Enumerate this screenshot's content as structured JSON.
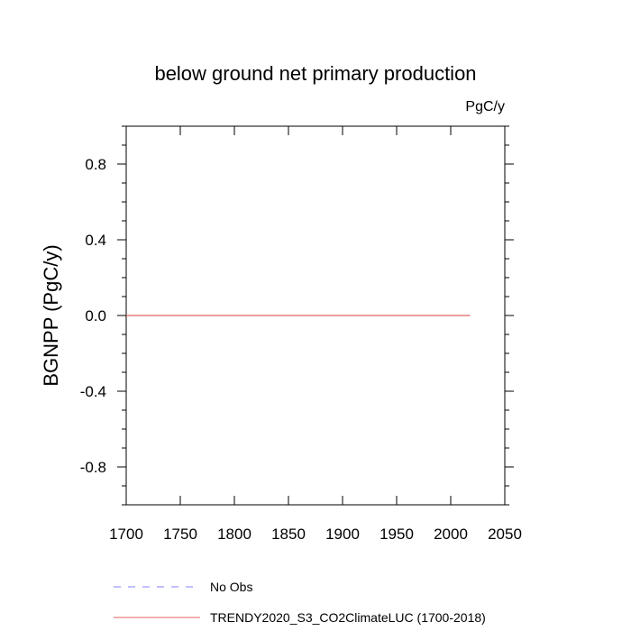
{
  "chart_data": {
    "type": "line",
    "title": "below ground net primary production",
    "units_label": "PgC/y",
    "xlabel": "",
    "ylabel": "BGNPP  (PgC/y)",
    "xlim": [
      1700,
      2050
    ],
    "ylim": [
      -1.0,
      1.0
    ],
    "x_ticks": [
      1700,
      1750,
      1800,
      1850,
      1900,
      1950,
      2000,
      2050
    ],
    "x_tick_labels": [
      "1700",
      "1750",
      "1800",
      "1850",
      "1900",
      "1950",
      "2000",
      "2050"
    ],
    "y_ticks": [
      0.8,
      0.4,
      0.0,
      -0.4,
      -0.8
    ],
    "y_tick_labels": [
      "0.8",
      "0.4",
      "0.0",
      "-0.4",
      "-0.8"
    ],
    "grid": false,
    "legend_position": "bottom",
    "series": [
      {
        "name": "No Obs",
        "color": "#8080ff",
        "style": "dashed",
        "x": [],
        "y": []
      },
      {
        "name": "TRENDY2020_S3_CO2ClimateLUC (1700-2018)",
        "color": "#e06060",
        "style": "solid",
        "x": [
          1700,
          1750,
          1800,
          1850,
          1900,
          1950,
          2000,
          2018
        ],
        "y": [
          0,
          0,
          0,
          0,
          0,
          0,
          0,
          0
        ]
      }
    ]
  }
}
